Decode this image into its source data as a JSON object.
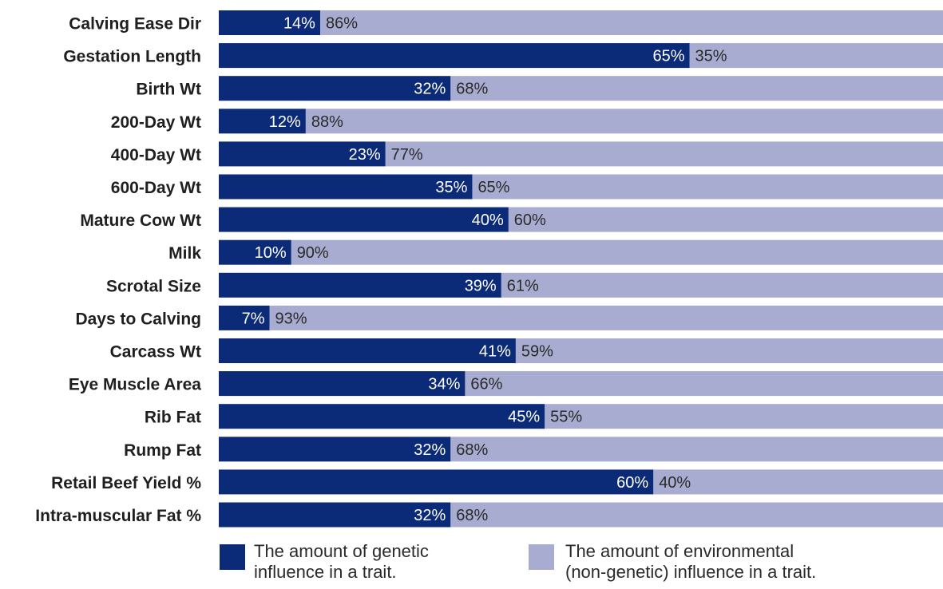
{
  "chart_data": {
    "type": "bar",
    "stacked": true,
    "orientation": "horizontal",
    "percent_stack": true,
    "categories": [
      "Calving Ease Dir",
      "Gestation Length",
      "Birth Wt",
      "200-Day Wt",
      "400-Day Wt",
      "600-Day Wt",
      "Mature Cow Wt",
      "Milk",
      "Scrotal Size",
      "Days to Calving",
      "Carcass Wt",
      "Eye Muscle Area",
      "Rib Fat",
      "Rump Fat",
      "Retail Beef Yield %",
      "Intra-muscular Fat %"
    ],
    "series": [
      {
        "name": "The amount of genetic influence in a trait.",
        "values": [
          14,
          65,
          32,
          12,
          23,
          35,
          40,
          10,
          39,
          7,
          41,
          34,
          45,
          32,
          60,
          32
        ],
        "labels": [
          "14%",
          "65%",
          "32%",
          "12%",
          "23%",
          "35%",
          "40%",
          "10%",
          "39%",
          "7%",
          "41%",
          "34%",
          "45%",
          "32%",
          "60%",
          "32%"
        ],
        "color": "#0b2a78"
      },
      {
        "name": "The amount of environmental (non-genetic) influence in a trait.",
        "values": [
          86,
          35,
          68,
          88,
          77,
          65,
          60,
          90,
          61,
          93,
          59,
          66,
          55,
          68,
          40,
          68
        ],
        "labels": [
          "86%",
          "35%",
          "68%",
          "88%",
          "77%",
          "65%",
          "60%",
          "90%",
          "61%",
          "93%",
          "59%",
          "66%",
          "55%",
          "68%",
          "40%",
          "68%"
        ],
        "color": "#a7acd0"
      }
    ],
    "xlim": [
      0,
      100
    ],
    "grid": false,
    "legend": {
      "position": "bottom",
      "items": [
        {
          "text": "The amount of genetic\ninfluence in a trait.",
          "color": "#0b2a78"
        },
        {
          "text": "The amount of environmental\n(non-genetic) influence in a trait.",
          "color": "#a7acd0"
        }
      ]
    },
    "colors": {
      "genetic_label_text": "#ffffff",
      "environmental_label_text": "#2a2a2a",
      "category_label_text": "#1f1f1f"
    }
  }
}
